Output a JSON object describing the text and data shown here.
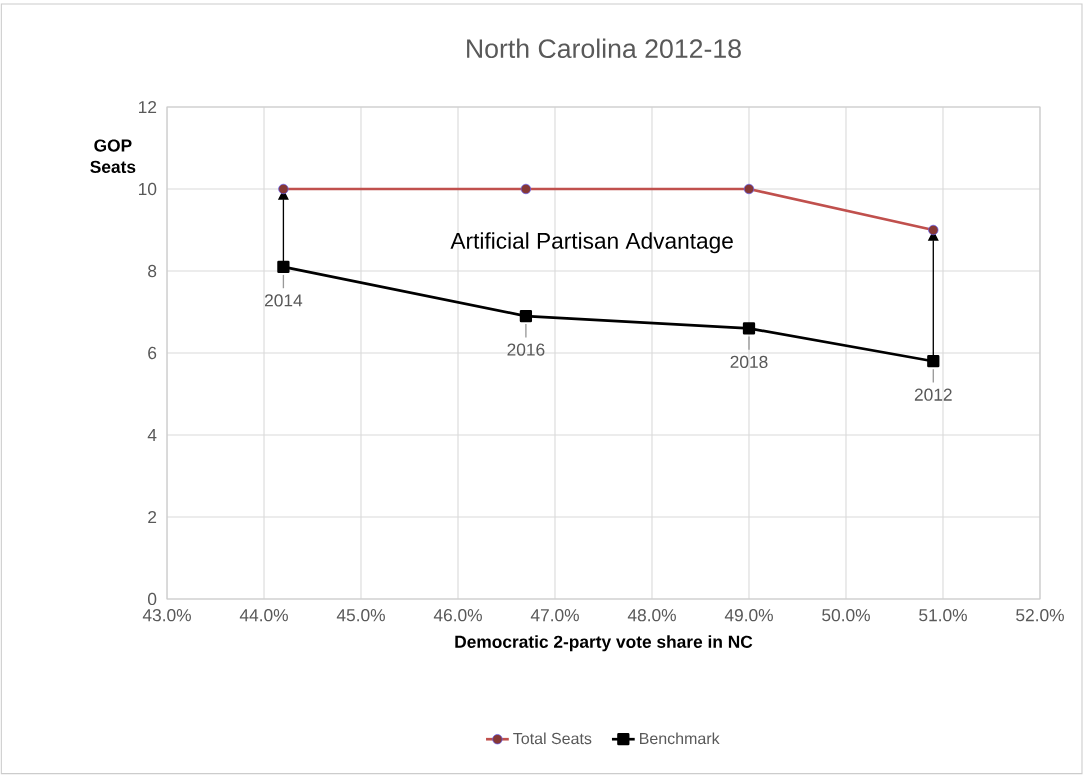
{
  "chart_data": {
    "type": "line",
    "title": "North Carolina 2012-18",
    "xlabel": "Democratic 2-party vote share in NC",
    "ylabel": "GOP Seats",
    "xlim": [
      43,
      52
    ],
    "ylim": [
      0,
      12
    ],
    "xticks": [
      {
        "value": 43,
        "label": "43.0%"
      },
      {
        "value": 44,
        "label": "44.0%"
      },
      {
        "value": 45,
        "label": "45.0%"
      },
      {
        "value": 46,
        "label": "46.0%"
      },
      {
        "value": 47,
        "label": "47.0%"
      },
      {
        "value": 48,
        "label": "48.0%"
      },
      {
        "value": 49,
        "label": "49.0%"
      },
      {
        "value": 50,
        "label": "50.0%"
      },
      {
        "value": 51,
        "label": "51.0%"
      },
      {
        "value": 52,
        "label": "52.0%"
      }
    ],
    "yticks": [
      0,
      2,
      4,
      6,
      8,
      10,
      12
    ],
    "grid": true,
    "legend": "bottom",
    "x": [
      44.2,
      46.7,
      49.0,
      50.9
    ],
    "series": [
      {
        "name": "Total Seats",
        "color": "#c0504d",
        "marker": "circle",
        "values": [
          10,
          10,
          10,
          9
        ]
      },
      {
        "name": "Benchmark",
        "color": "#000000",
        "marker": "square",
        "values": [
          8.1,
          6.9,
          6.6,
          5.8
        ]
      }
    ],
    "annotations": [
      "Artificial Partisan Advantage",
      {
        "text": "2014",
        "x": 44.2,
        "y": 8.1
      },
      {
        "text": "2016",
        "x": 46.7,
        "y": 6.9
      },
      {
        "text": "2018",
        "x": 49.0,
        "y": 6.6
      },
      {
        "text": "2012",
        "x": 50.9,
        "y": 5.8
      }
    ]
  }
}
